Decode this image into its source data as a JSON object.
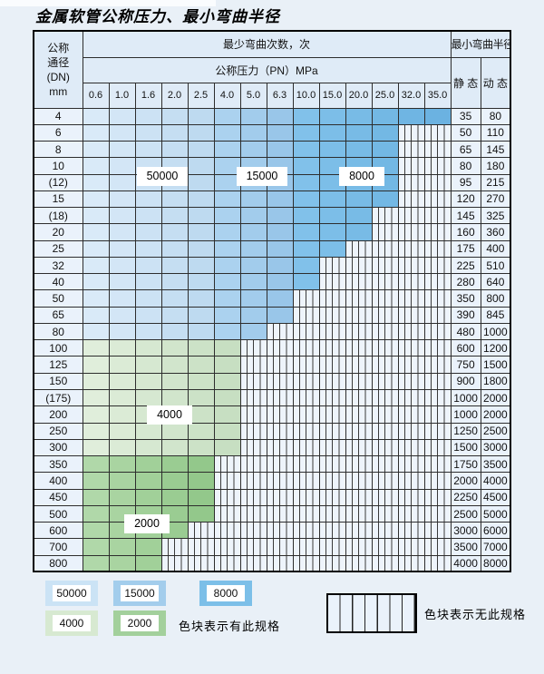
{
  "title": "金属软管公称压力、最小弯曲半径",
  "table": {
    "dn_header_lines": [
      "公称",
      "通径",
      "(DN)",
      "mm"
    ],
    "bend_times_header": "最少弯曲次数，次",
    "pressure_header": "公称压力（PN）MPa",
    "pressure_columns": [
      "0.6",
      "1.0",
      "1.6",
      "2.0",
      "2.5",
      "4.0",
      "5.0",
      "6.3",
      "10.0",
      "15.0",
      "20.0",
      "25.0",
      "32.0",
      "35.0"
    ],
    "radius_header": "最小弯曲半径",
    "static_header": "静 态",
    "dynamic_header": "动 态",
    "rows": [
      {
        "dn": "4",
        "colored": 14,
        "static": "35",
        "dynamic": "80"
      },
      {
        "dn": "6",
        "colored": 12,
        "static": "50",
        "dynamic": "110"
      },
      {
        "dn": "8",
        "colored": 12,
        "static": "65",
        "dynamic": "145"
      },
      {
        "dn": "10",
        "colored": 12,
        "static": "80",
        "dynamic": "180"
      },
      {
        "dn": "(12)",
        "colored": 12,
        "static": "95",
        "dynamic": "215"
      },
      {
        "dn": "15",
        "colored": 12,
        "static": "120",
        "dynamic": "270"
      },
      {
        "dn": "(18)",
        "colored": 11,
        "static": "145",
        "dynamic": "325"
      },
      {
        "dn": "20",
        "colored": 11,
        "static": "160",
        "dynamic": "360"
      },
      {
        "dn": "25",
        "colored": 10,
        "static": "175",
        "dynamic": "400"
      },
      {
        "dn": "32",
        "colored": 9,
        "static": "225",
        "dynamic": "510"
      },
      {
        "dn": "40",
        "colored": 9,
        "static": "280",
        "dynamic": "640"
      },
      {
        "dn": "50",
        "colored": 8,
        "static": "350",
        "dynamic": "800"
      },
      {
        "dn": "65",
        "colored": 8,
        "static": "390",
        "dynamic": "845"
      },
      {
        "dn": "80",
        "colored": 7,
        "static": "480",
        "dynamic": "1000"
      },
      {
        "dn": "100",
        "colored": 6,
        "static": "600",
        "dynamic": "1200"
      },
      {
        "dn": "125",
        "colored": 6,
        "static": "750",
        "dynamic": "1500"
      },
      {
        "dn": "150",
        "colored": 6,
        "static": "900",
        "dynamic": "1800"
      },
      {
        "dn": "(175)",
        "colored": 6,
        "static": "1000",
        "dynamic": "2000"
      },
      {
        "dn": "200",
        "colored": 6,
        "static": "1000",
        "dynamic": "2000"
      },
      {
        "dn": "250",
        "colored": 6,
        "static": "1250",
        "dynamic": "2500"
      },
      {
        "dn": "300",
        "colored": 6,
        "static": "1500",
        "dynamic": "3000"
      },
      {
        "dn": "350",
        "colored": 5,
        "static": "1750",
        "dynamic": "3500"
      },
      {
        "dn": "400",
        "colored": 5,
        "static": "2000",
        "dynamic": "4000"
      },
      {
        "dn": "450",
        "colored": 5,
        "static": "2250",
        "dynamic": "4500"
      },
      {
        "dn": "500",
        "colored": 5,
        "static": "2500",
        "dynamic": "5000"
      },
      {
        "dn": "600",
        "colored": 4,
        "static": "3000",
        "dynamic": "6000"
      },
      {
        "dn": "700",
        "colored": 3,
        "static": "3500",
        "dynamic": "7000"
      },
      {
        "dn": "800",
        "colored": 3,
        "static": "4000",
        "dynamic": "8000"
      }
    ]
  },
  "zone_labels": {
    "z50000": "50000",
    "z15000": "15000",
    "z8000": "8000",
    "z4000": "4000",
    "z2000": "2000"
  },
  "legend": {
    "row1": [
      {
        "label": "50000",
        "color": "#cbe3f5"
      },
      {
        "label": "15000",
        "color": "#a3cdec"
      },
      {
        "label": "8000",
        "color": "#7cbfe8"
      }
    ],
    "row2": [
      {
        "label": "4000",
        "color": "#d7e9d1"
      },
      {
        "label": "2000",
        "color": "#a3d09c"
      }
    ],
    "has_spec_text": "色块表示有此规格",
    "no_spec_text": "色块表示无此规格"
  },
  "colors": {
    "blue_cols": [
      "#d9eaf8",
      "#d3e6f6",
      "#cce2f4",
      "#c5def2",
      "#bedaf0",
      "#abd2ef",
      "#a2ccec",
      "#99c6e9",
      "#81c1ea",
      "#7cbee8",
      "#78bbe6",
      "#73b8e4",
      "#6fb5e3",
      "#6bb2e1"
    ],
    "green_4000": [
      "#e0eedb",
      "#dbebd6",
      "#d6e8d1",
      "#d1e5cc",
      "#cce2c7",
      "#c7dfc2"
    ],
    "green_2000": [
      "#b0d8a9",
      "#a9d4a1",
      "#a1d099",
      "#9acc92",
      "#93c88b"
    ],
    "hatch_bg": "#eef4fb",
    "hatch_line": "#3a3a3a"
  }
}
